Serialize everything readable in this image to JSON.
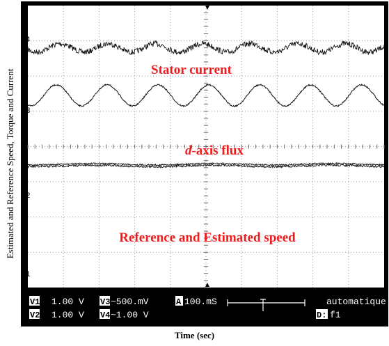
{
  "axis": {
    "ylabel": "Estimated and Reference Speed, Torque and Current",
    "xlabel": "Time (sec)"
  },
  "colors": {
    "annotation": "#ee1c1c",
    "trace": "#111111",
    "grid": "#9a9a9a",
    "frame": "#000000"
  },
  "annotations": {
    "stator": "Stator current",
    "flux_italic": "d",
    "flux_rest": "-axis flux",
    "speed": "Reference and Estimated speed"
  },
  "markers": {
    "ch4": "4",
    "ch3": "3",
    "ch2": "2",
    "ch1": "1"
  },
  "status": {
    "row1": {
      "v1_badge": "V1",
      "v1_value": "1.00 V",
      "v3_badge": "V3",
      "v3_value": "~500.mV",
      "timebase_badge": "A",
      "timebase_value": "100.mS",
      "trigger": "automatique"
    },
    "row2": {
      "v2_badge": "V2",
      "v2_value": "1.00 V",
      "v4_badge": "V4",
      "v4_value": "~1.00 V",
      "d_badge": "D:",
      "d_value": "f1"
    }
  },
  "chart_data": {
    "type": "line",
    "title": "",
    "xlabel": "Time (sec)",
    "ylabel": "Estimated and Reference Speed, Torque and Current",
    "x_divisions": 10,
    "y_divisions": 8,
    "timebase": "100.mS",
    "grid": true,
    "series": [
      {
        "name": "Stator current",
        "channel": "4",
        "level_div": 1.2,
        "ripple_amplitude_div": 0.12,
        "ripple_cycles": 7.5,
        "noise_div": 0.08
      },
      {
        "name": "d-axis flux",
        "channel": "3",
        "level_div": 2.55,
        "ripple_amplitude_div": 0.3,
        "ripple_cycles": 7.0,
        "noise_div": 0.02
      },
      {
        "name": "Reference and Estimated speed",
        "channel": "2",
        "level_div": 4.55,
        "ripple_amplitude_div": 0.02,
        "ripple_cycles": 3.0,
        "noise_div": 0.03
      },
      {
        "name": "Reference and Estimated speed",
        "channel": "2",
        "level_div": 4.5,
        "ripple_amplitude_div": 0.02,
        "ripple_cycles": 3.0,
        "noise_div": 0.02
      }
    ]
  }
}
